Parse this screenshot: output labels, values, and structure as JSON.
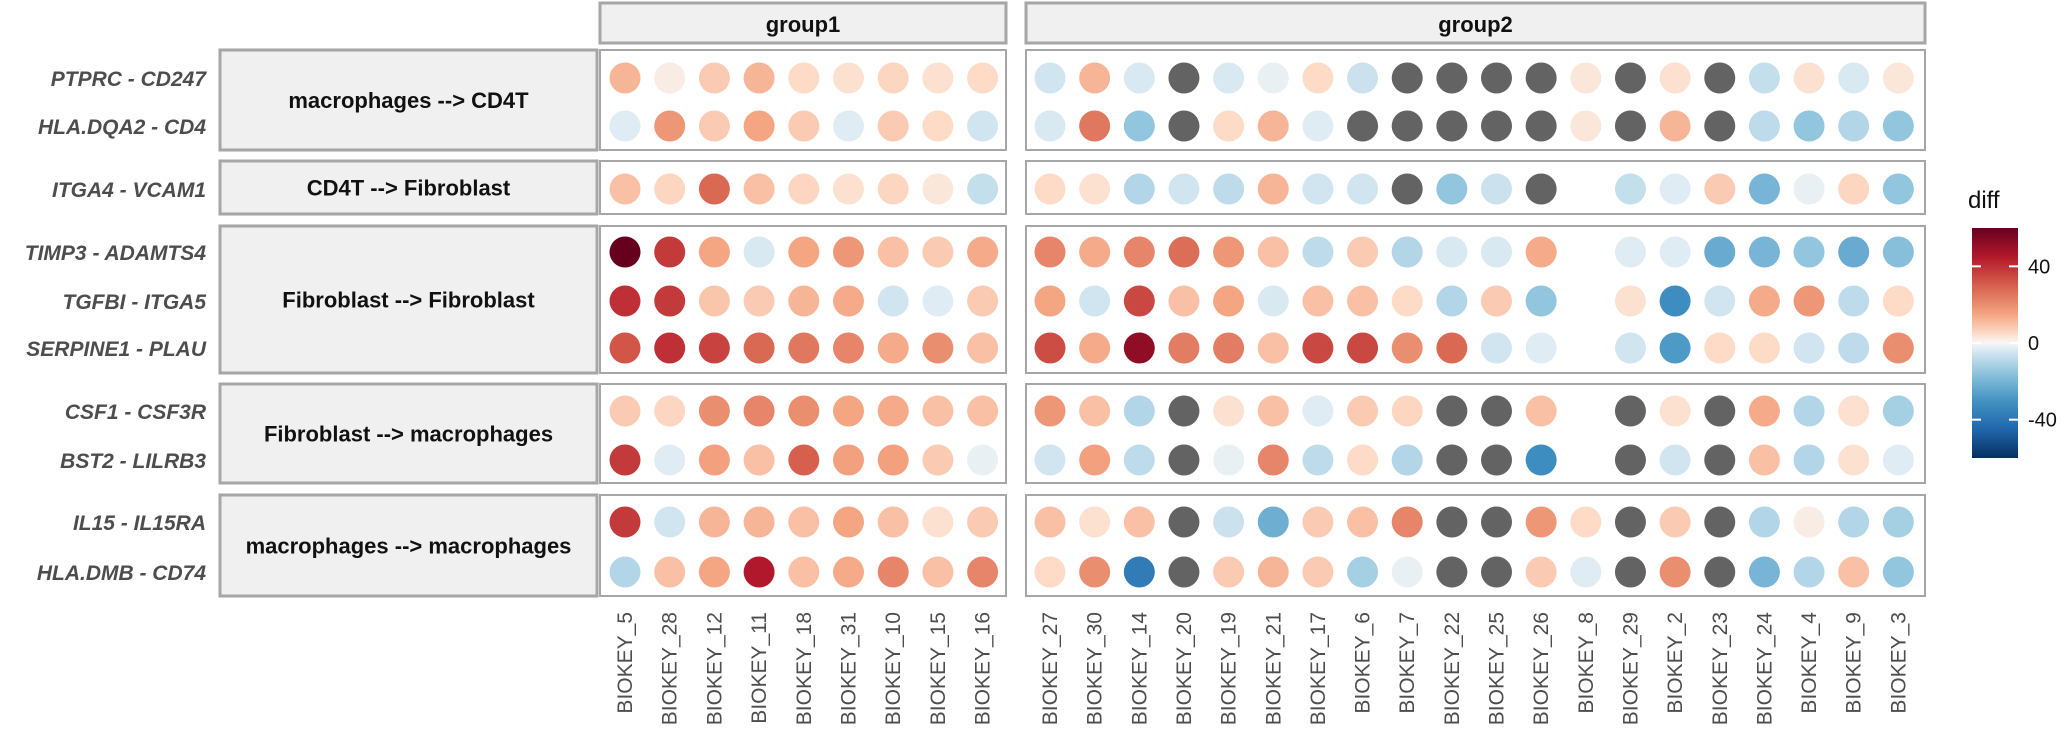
{
  "chart_data": {
    "type": "scatter",
    "legend": {
      "title": "diff",
      "ticks": [
        40,
        0,
        -40
      ],
      "range": [
        -60,
        60
      ],
      "position": "right",
      "na_color": "#636363"
    },
    "facet_columns": [
      {
        "label": "group1",
        "samples": [
          "BIOKEY_5",
          "BIOKEY_28",
          "BIOKEY_12",
          "BIOKEY_11",
          "BIOKEY_18",
          "BIOKEY_31",
          "BIOKEY_10",
          "BIOKEY_15",
          "BIOKEY_16"
        ]
      },
      {
        "label": "group2",
        "samples": [
          "BIOKEY_27",
          "BIOKEY_30",
          "BIOKEY_14",
          "BIOKEY_20",
          "BIOKEY_19",
          "BIOKEY_21",
          "BIOKEY_17",
          "BIOKEY_6",
          "BIOKEY_7",
          "BIOKEY_22",
          "BIOKEY_25",
          "BIOKEY_26",
          "BIOKEY_8",
          "BIOKEY_29",
          "BIOKEY_2",
          "BIOKEY_23",
          "BIOKEY_24",
          "BIOKEY_4",
          "BIOKEY_9",
          "BIOKEY_3"
        ]
      }
    ],
    "facet_rows": [
      {
        "label": "macrophages --> CD4T",
        "pairs": [
          {
            "name": "PTPRC - CD247",
            "group1": [
              12,
              2,
              8,
              12,
              5,
              4,
              6,
              4,
              5
            ],
            "group2": [
              -5,
              12,
              -4,
              null,
              -4,
              -2,
              5,
              -6,
              null,
              null,
              null,
              null,
              3,
              null,
              4,
              null,
              -7,
              4,
              -4,
              3
            ]
          },
          {
            "name": "HLA.DQA2 - CD4",
            "group1": [
              -3,
              18,
              8,
              15,
              8,
              -3,
              8,
              5,
              -5
            ],
            "group2": [
              -4,
              25,
              -15,
              null,
              5,
              12,
              -3,
              null,
              null,
              null,
              null,
              null,
              3,
              null,
              12,
              null,
              -8,
              -15,
              -10,
              -15
            ]
          }
        ]
      },
      {
        "label": "CD4T --> Fibroblast",
        "pairs": [
          {
            "name": "ITGA4 - VCAM1",
            "group1": [
              10,
              6,
              28,
              10,
              6,
              4,
              6,
              3,
              -7
            ],
            "group2": [
              5,
              4,
              -10,
              -5,
              -8,
              12,
              -5,
              -5,
              null,
              -15,
              -6,
              null,
              "",
              -7,
              -3,
              8,
              -20,
              -2,
              6,
              -15
            ]
          }
        ]
      },
      {
        "label": "Fibroblast --> Fibroblast",
        "pairs": [
          {
            "name": "TIMP3 - ADAMTS4",
            "group1": [
              60,
              38,
              15,
              -4,
              15,
              18,
              10,
              8,
              14
            ],
            "group2": [
              22,
              14,
              22,
              27,
              18,
              10,
              -8,
              8,
              -10,
              -4,
              -4,
              14,
              "",
              -3,
              -3,
              -23,
              -20,
              -15,
              -23,
              -17
            ]
          },
          {
            "name": "TGFBI - ITGA5",
            "group1": [
              40,
              38,
              9,
              8,
              12,
              14,
              -5,
              -3,
              8
            ],
            "group2": [
              15,
              -5,
              35,
              10,
              15,
              -4,
              10,
              10,
              5,
              -10,
              8,
              -15,
              "",
              4,
              -32,
              -5,
              14,
              18,
              -8,
              5
            ]
          },
          {
            "name": "SERPINE1 - PLAU",
            "group1": [
              32,
              40,
              36,
              28,
              25,
              22,
              14,
              20,
              10
            ],
            "group2": [
              34,
              14,
              52,
              24,
              24,
              10,
              35,
              35,
              20,
              28,
              -5,
              -3,
              "",
              -5,
              -28,
              5,
              5,
              -5,
              -8,
              20
            ]
          }
        ]
      },
      {
        "label": "Fibroblast --> macrophages",
        "pairs": [
          {
            "name": "CSF1 - CSF3R",
            "group1": [
              8,
              6,
              20,
              22,
              20,
              15,
              14,
              10,
              10
            ],
            "group2": [
              18,
              10,
              -10,
              null,
              4,
              10,
              -3,
              8,
              6,
              null,
              null,
              10,
              "",
              null,
              4,
              null,
              14,
              -10,
              4,
              -12
            ]
          },
          {
            "name": "BST2 - LILRB3",
            "group1": [
              38,
              -3,
              16,
              10,
              30,
              16,
              16,
              8,
              -2
            ],
            "group2": [
              -5,
              16,
              -8,
              null,
              -2,
              22,
              -8,
              5,
              -10,
              null,
              null,
              -32,
              "",
              null,
              -5,
              null,
              10,
              -10,
              4,
              -3
            ]
          }
        ]
      },
      {
        "label": "macrophages --> macrophages",
        "pairs": [
          {
            "name": "IL15 - IL15RA",
            "group1": [
              38,
              -5,
              12,
              12,
              10,
              15,
              10,
              4,
              8
            ],
            "group2": [
              10,
              4,
              10,
              null,
              -6,
              -22,
              8,
              10,
              22,
              null,
              null,
              18,
              5,
              null,
              8,
              null,
              -10,
              2,
              -10,
              -12
            ]
          },
          {
            "name": "HLA.DMB - CD74",
            "group1": [
              -10,
              10,
              15,
              45,
              10,
              14,
              22,
              10,
              22
            ],
            "group2": [
              5,
              20,
              -38,
              null,
              8,
              12,
              8,
              -12,
              -2,
              null,
              null,
              8,
              -3,
              null,
              20,
              null,
              -20,
              -10,
              10,
              -15
            ]
          }
        ]
      }
    ]
  }
}
